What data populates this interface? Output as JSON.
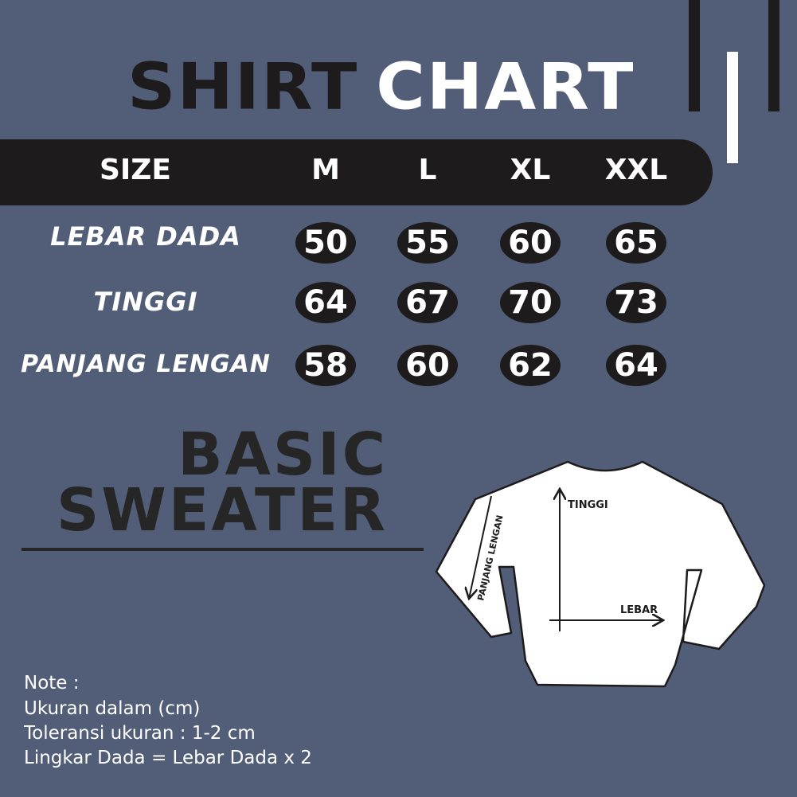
{
  "title": {
    "part1": "SHIRT",
    "part2": "CHART"
  },
  "header": {
    "label": "SIZE",
    "sizes": [
      "M",
      "L",
      "XL",
      "XXL"
    ]
  },
  "rows": [
    {
      "label": "LEBAR DADA",
      "values": [
        "50",
        "55",
        "60",
        "65"
      ]
    },
    {
      "label": "TINGGI",
      "values": [
        "64",
        "67",
        "70",
        "73"
      ]
    },
    {
      "label": "PANJANG LENGAN",
      "values": [
        "58",
        "60",
        "62",
        "64"
      ]
    }
  ],
  "product": {
    "line1": "BASIC",
    "line2": "SWEATER"
  },
  "diagram": {
    "height_label": "TINGGI",
    "width_label": "LEBAR",
    "sleeve_label": "PANJANG LENGAN"
  },
  "notes": [
    "Note :",
    "Ukuran dalam (cm)",
    "Toleransi ukuran : 1-2 cm",
    "Lingkar Dada = Lebar Dada x 2"
  ],
  "colors": {
    "background": "#525d77",
    "dark": "#1d1b1c",
    "light": "#ffffff"
  }
}
